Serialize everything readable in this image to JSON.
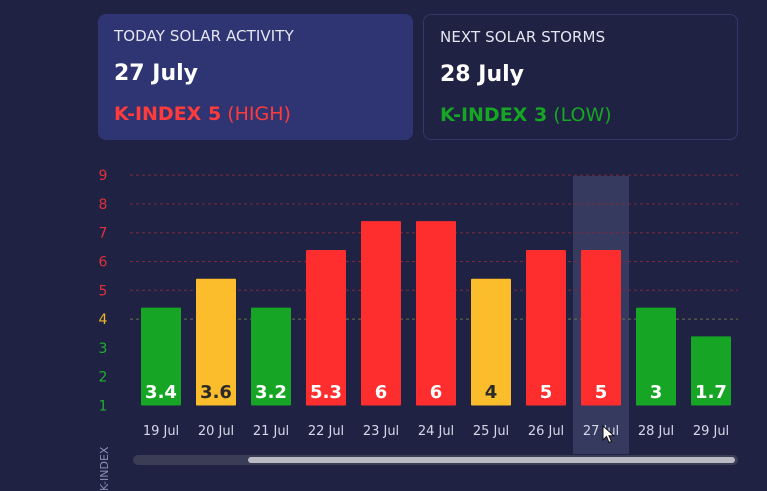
{
  "today": {
    "heading": "TODAY SOLAR ACTIVITY",
    "date": "27 July",
    "kindex_label": "K-INDEX 5",
    "level": "(HIGH)",
    "color": "#ff3b3b"
  },
  "next": {
    "heading": "NEXT SOLAR STORMS",
    "date": "28 July",
    "kindex_label": "K-INDEX 3",
    "level": "(LOW)",
    "color": "#16a524"
  },
  "chart_data": {
    "type": "bar",
    "categories": [
      "19 Jul",
      "20 Jul",
      "21 Jul",
      "22 Jul",
      "23 Jul",
      "24 Jul",
      "25 Jul",
      "26 Jul",
      "27 Jul",
      "28 Jul",
      "29 Jul"
    ],
    "values": [
      3.4,
      3.6,
      3.2,
      5.3,
      6,
      6,
      4,
      5,
      5,
      3,
      1.7
    ],
    "value_labels": [
      "3.4",
      "3.6",
      "3.2",
      "5.3",
      "6",
      "6",
      "4",
      "5",
      "5",
      "3",
      "1.7"
    ],
    "bar_heights": [
      3.4,
      4.4,
      3.4,
      5.4,
      6.4,
      6.4,
      4.4,
      5.4,
      5.4,
      3.4,
      2.4
    ],
    "y_ticks": [
      "1",
      "2",
      "3",
      "4",
      "5",
      "6",
      "7",
      "8",
      "9"
    ],
    "ylim": [
      1,
      9
    ],
    "ylabel": "K-INDEX",
    "highlighted_category": "27 Jul",
    "colors": {
      "low": "#16a524",
      "moderate": "#fbbd2b",
      "high": "#ff2e2e",
      "tick_low": "#1fb02d",
      "tick_moderate": "#f0b429",
      "tick_high": "#e0303a",
      "grid_high": "#7a2a3c",
      "grid_moderate": "#6e6f4a"
    }
  }
}
